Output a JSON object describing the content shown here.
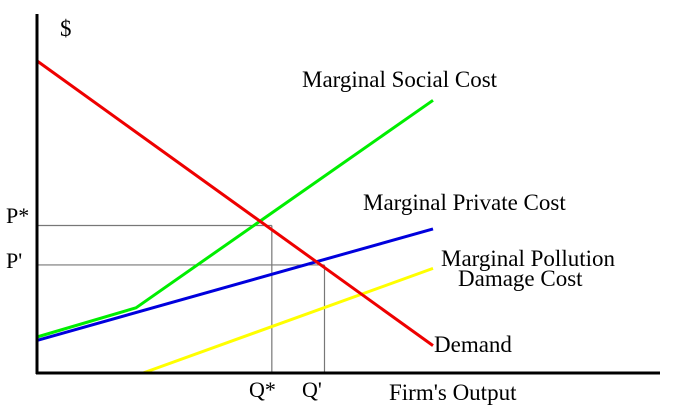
{
  "chart_data": {
    "type": "line",
    "title": "",
    "ylabel": "$",
    "xlabel": "Firm's Output",
    "x_ticks": [
      "Q*",
      "Q'"
    ],
    "y_ticks": [
      "P*",
      "P'"
    ],
    "xlim": [
      0,
      10
    ],
    "ylim": [
      0,
      10
    ],
    "guides": [
      {
        "x": 5.93,
        "y": 4.3
      },
      {
        "x": 7.26,
        "y": 3.15
      }
    ],
    "series": [
      {
        "name": "Marginal Social Cost",
        "color": "#00ee00",
        "x": [
          0,
          2.5,
          10
        ],
        "y": [
          1.05,
          1.9,
          7.95
        ]
      },
      {
        "name": "Marginal Private Cost",
        "color": "#0000dd",
        "x": [
          0,
          10
        ],
        "y": [
          0.95,
          4.2
        ]
      },
      {
        "name": "Marginal Pollution\nDamage Cost",
        "color": "#ffff00",
        "x": [
          2.68,
          10
        ],
        "y": [
          0,
          3.05
        ]
      },
      {
        "name": "Demand",
        "color": "#ee0000",
        "x": [
          0,
          10
        ],
        "y": [
          9.1,
          0.8
        ]
      }
    ]
  }
}
